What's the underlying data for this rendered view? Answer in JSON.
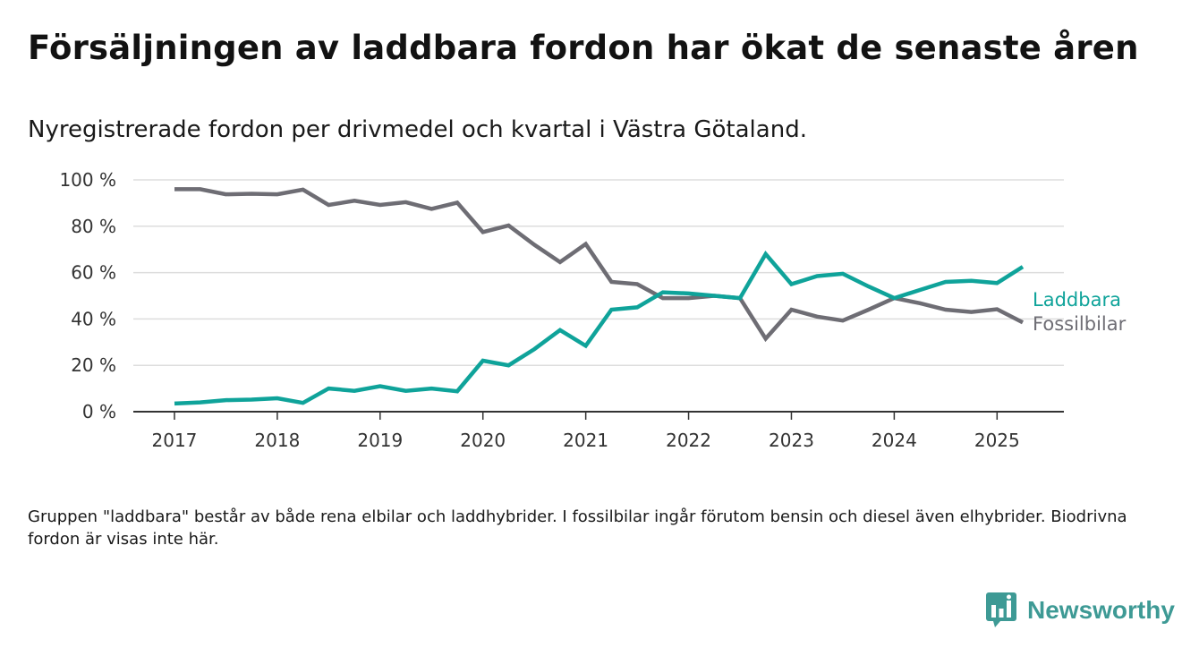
{
  "title": "Försäljningen av laddbara fordon har ökat de senaste åren",
  "subtitle": "Nyregistrerade fordon per drivmedel och kvartal i Västra Götaland.",
  "note": "Gruppen \"laddbara\" består av både rena elbilar och laddhybrider. I fossilbilar ingår förutom bensin och diesel även elhybrider. Biodrivna fordon är visas inte här.",
  "brand": "Newsworthy",
  "colors": {
    "laddbara": "#0fa39a",
    "fossil": "#6e6d74",
    "grid": "#dddddd",
    "axis": "#333333",
    "brand": "#3e9a95"
  },
  "chart_data": {
    "type": "line",
    "x_tick_labels": [
      "2017",
      "2018",
      "2019",
      "2020",
      "2021",
      "2022",
      "2023",
      "2024",
      "2025"
    ],
    "y_tick_labels": [
      "0 %",
      "20 %",
      "40 %",
      "60 %",
      "80 %",
      "100 %"
    ],
    "ylim": [
      0,
      100
    ],
    "xlim": [
      2016.6,
      2025.65
    ],
    "grid": true,
    "legend_placement": "inline-right",
    "x": [
      2017.0,
      2017.25,
      2017.5,
      2017.75,
      2018.0,
      2018.25,
      2018.5,
      2018.75,
      2019.0,
      2019.25,
      2019.5,
      2019.75,
      2020.0,
      2020.25,
      2020.5,
      2020.75,
      2021.0,
      2021.25,
      2021.5,
      2021.75,
      2022.0,
      2022.25,
      2022.5,
      2022.75,
      2023.0,
      2023.25,
      2023.5,
      2023.75,
      2024.0,
      2024.25,
      2024.5,
      2024.75,
      2025.0,
      2025.25
    ],
    "series": [
      {
        "name": "Laddbara",
        "color": "#0fa39a",
        "values": [
          3.5,
          4,
          5,
          5.2,
          5.8,
          3.8,
          10,
          9,
          11,
          9,
          10,
          8.8,
          22,
          20,
          27,
          35.2,
          28.4,
          44,
          45,
          51.5,
          51,
          50,
          49,
          68,
          55,
          58.5,
          59.5,
          54,
          49,
          52.5,
          56,
          56.5,
          55.5,
          62.5
        ]
      },
      {
        "name": "Fossilbilar",
        "color": "#6e6d74",
        "values": [
          96,
          96,
          93.8,
          94,
          93.8,
          95.8,
          89.2,
          91,
          89.2,
          90.4,
          87.5,
          90.2,
          77.5,
          80.3,
          72,
          64.5,
          72.3,
          56,
          55,
          49,
          49,
          50,
          49,
          31.5,
          44,
          41,
          39.3,
          44,
          49,
          46.8,
          44,
          43,
          44.2,
          38.5
        ]
      }
    ]
  }
}
